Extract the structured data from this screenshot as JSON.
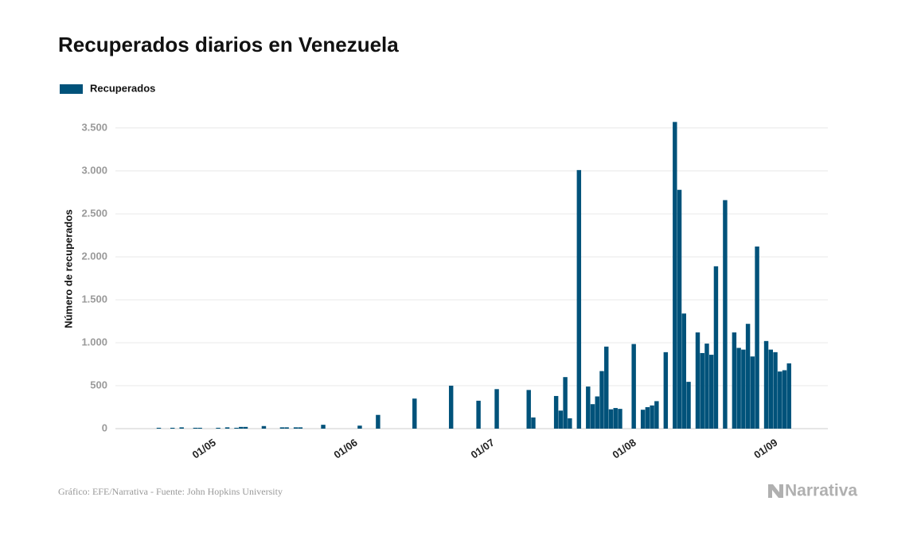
{
  "chart_data": {
    "type": "bar",
    "title": "Recuperados diarios en Venezuela",
    "y_label": "Número de recuperados",
    "source": "Gráfico: EFE/Narrativa - Fuente: John Hopkins University",
    "logo": "Narrativa",
    "grid": true,
    "ylim": [
      0,
      3740
    ],
    "yticks": [
      0,
      500,
      {
        "value": 1000,
        "label": "1.000"
      },
      {
        "value": 1500,
        "label": "1.500"
      },
      {
        "value": 2000,
        "label": "2.000"
      },
      {
        "value": 2500,
        "label": "2.500"
      },
      {
        "value": 3000,
        "label": "3.000"
      },
      {
        "value": 3500,
        "label": "3.500"
      }
    ],
    "categories": [
      null,
      null,
      null,
      null,
      null,
      null,
      null,
      null,
      null,
      null,
      null,
      null,
      null,
      null,
      null,
      null,
      null,
      null,
      null,
      "01/05",
      null,
      null,
      null,
      null,
      null,
      null,
      null,
      null,
      null,
      null,
      null,
      null,
      null,
      null,
      null,
      null,
      null,
      null,
      null,
      null,
      null,
      null,
      null,
      null,
      null,
      null,
      null,
      null,
      null,
      null,
      "01/06",
      null,
      null,
      null,
      null,
      null,
      null,
      null,
      null,
      null,
      null,
      null,
      null,
      null,
      null,
      null,
      null,
      null,
      null,
      null,
      null,
      null,
      null,
      null,
      null,
      null,
      null,
      null,
      null,
      null,
      "01/07",
      null,
      null,
      null,
      null,
      null,
      null,
      null,
      null,
      null,
      null,
      null,
      null,
      null,
      null,
      null,
      null,
      null,
      null,
      null,
      null,
      null,
      null,
      null,
      null,
      null,
      null,
      null,
      null,
      null,
      null,
      "01/08",
      null,
      null,
      null,
      null,
      null,
      null,
      null,
      null,
      null,
      null,
      null,
      null,
      null,
      null,
      null,
      null,
      null,
      null,
      null,
      null,
      null,
      null,
      null,
      null,
      null,
      null,
      null,
      null,
      null,
      null,
      "01/09",
      null,
      null,
      null,
      null,
      null,
      null,
      null,
      null,
      null,
      null,
      null,
      null,
      null
    ],
    "series": [
      {
        "name": "Recuperados",
        "color": "#00527a",
        "values": [
          0,
          0,
          0,
          0,
          0,
          0,
          0,
          0,
          0,
          10,
          0,
          0,
          10,
          0,
          15,
          0,
          0,
          10,
          10,
          0,
          0,
          0,
          10,
          0,
          15,
          0,
          10,
          20,
          20,
          0,
          0,
          0,
          30,
          0,
          0,
          0,
          15,
          15,
          0,
          15,
          15,
          0,
          0,
          0,
          0,
          45,
          0,
          0,
          0,
          0,
          0,
          0,
          0,
          35,
          0,
          0,
          0,
          160,
          0,
          0,
          0,
          0,
          0,
          0,
          0,
          350,
          0,
          0,
          0,
          0,
          0,
          0,
          0,
          500,
          0,
          0,
          0,
          0,
          0,
          325,
          0,
          0,
          0,
          460,
          0,
          0,
          0,
          0,
          0,
          0,
          450,
          130,
          0,
          0,
          0,
          0,
          380,
          210,
          600,
          120,
          0,
          3010,
          0,
          490,
          285,
          375,
          670,
          955,
          225,
          240,
          230,
          0,
          0,
          985,
          0,
          220,
          250,
          270,
          320,
          0,
          890,
          0,
          3570,
          2780,
          1340,
          545,
          0,
          1120,
          880,
          990,
          860,
          1890,
          0,
          2660,
          0,
          1120,
          940,
          920,
          1220,
          840,
          2120,
          0,
          1020,
          920,
          890,
          665,
          680,
          760,
          0,
          0,
          0,
          0,
          0,
          0,
          0,
          0
        ]
      }
    ]
  }
}
